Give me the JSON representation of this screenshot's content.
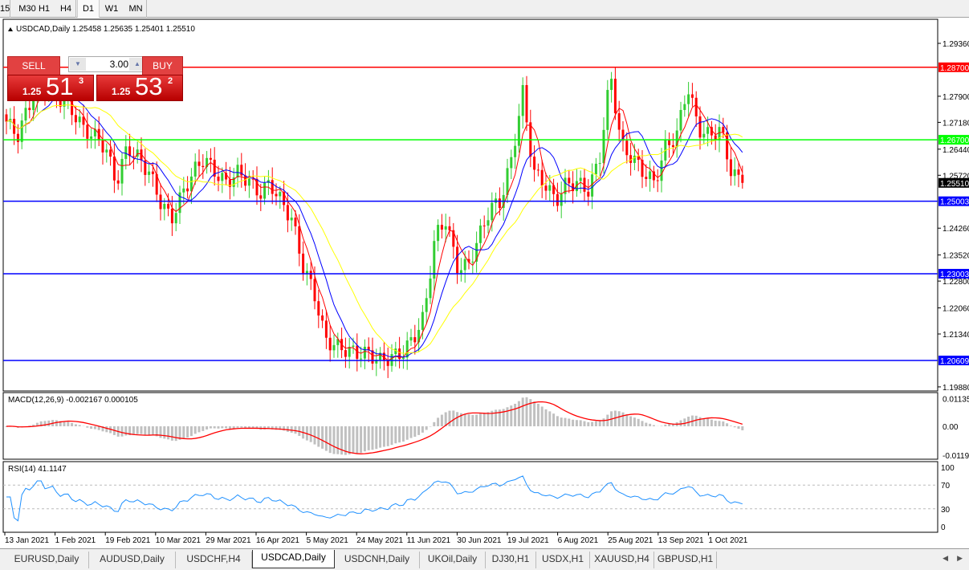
{
  "toolbar": {
    "timeframes": [
      {
        "label": "15"
      },
      {
        "label": "M30"
      },
      {
        "label": "H1"
      },
      {
        "label": "H4"
      },
      {
        "label": "D1",
        "active": true
      },
      {
        "label": "W1"
      },
      {
        "label": "MN"
      }
    ]
  },
  "chart": {
    "header": "USDCAD,Daily  1.25458 1.25635 1.25401 1.25510",
    "trade_panel": {
      "sell_label": "SELL",
      "buy_label": "BUY",
      "lot": "3.00",
      "sell_prefix": "1.25",
      "sell_big": "51",
      "sell_sup": "3",
      "buy_prefix": "1.25",
      "buy_big": "53",
      "buy_sup": "2"
    },
    "price_axis": [
      "1.29360",
      "1.27900",
      "1.27180",
      "1.26440",
      "1.25720",
      "1.24260",
      "1.23520",
      "1.22800",
      "1.22060",
      "1.21340",
      "1.19880"
    ],
    "current_price": {
      "label": "1.25510",
      "value": 1.2551,
      "color": "#000000"
    },
    "levels": [
      {
        "label": "1.28700",
        "value": 1.287,
        "color": "#ff0000"
      },
      {
        "label": "1.26700",
        "value": 1.267,
        "color": "#00ff00"
      },
      {
        "label": "1.25003",
        "value": 1.25003,
        "color": "#0000ff"
      },
      {
        "label": "1.23003",
        "value": 1.23003,
        "color": "#0000ff"
      },
      {
        "label": "1.20609",
        "value": 1.20609,
        "color": "#0000ff"
      }
    ],
    "date_labels": [
      "13 Jan 2021",
      "1 Feb 2021",
      "19 Feb 2021",
      "10 Mar 2021",
      "29 Mar 2021",
      "16 Apr 2021",
      "5 May 2021",
      "24 May 2021",
      "11 Jun 2021",
      "30 Jun 2021",
      "19 Jul 2021",
      "6 Aug 2021",
      "25 Aug 2021",
      "13 Sep 2021",
      "1 Oct 2021"
    ],
    "colors": {
      "bull": "#32cd32",
      "bear": "#ff0000",
      "ma_fast": "#ff0000",
      "ma_mid": "#0000ff",
      "ma_slow": "#ffff00"
    }
  },
  "macd": {
    "label": "MACD(12,26,9) -0.002167 0.000105",
    "axis": [
      "0.01135",
      "0.00",
      "-0.01190"
    ]
  },
  "rsi": {
    "label": "RSI(14) 41.1147",
    "axis": [
      "100",
      "70",
      "30",
      "0"
    ]
  },
  "chart_data": {
    "type": "candlestick",
    "symbol": "USDCAD",
    "timeframe": "Daily",
    "ylim": [
      1.1988,
      1.2985
    ],
    "closes": [
      1.272,
      1.268,
      1.276,
      1.283,
      1.281,
      1.278,
      1.275,
      1.27,
      1.268,
      1.265,
      1.255,
      1.265,
      1.262,
      1.258,
      1.25,
      1.245,
      1.252,
      1.258,
      1.262,
      1.258,
      1.255,
      1.258,
      1.256,
      1.252,
      1.255,
      1.25,
      1.245,
      1.232,
      1.225,
      1.212,
      1.21,
      1.209,
      1.208,
      1.208,
      1.206,
      1.207,
      1.208,
      1.212,
      1.218,
      1.24,
      1.245,
      1.232,
      1.232,
      1.24,
      1.248,
      1.25,
      1.262,
      1.28,
      1.258,
      1.255,
      1.25,
      1.255,
      1.255,
      1.253,
      1.262,
      1.285,
      1.265,
      1.262,
      1.258,
      1.255,
      1.265,
      1.268,
      1.282,
      1.27,
      1.268,
      1.27,
      1.258,
      1.2551
    ]
  },
  "tabs": [
    {
      "label": "EURUSD,Daily"
    },
    {
      "label": "AUDUSD,Daily"
    },
    {
      "label": "USDCHF,H4"
    },
    {
      "label": "USDCAD,Daily",
      "active": true
    },
    {
      "label": "USDCNH,Daily"
    },
    {
      "label": "UKOil,Daily"
    },
    {
      "label": "DJ30,H1"
    },
    {
      "label": "USDX,H1"
    },
    {
      "label": "XAUUSD,H4"
    },
    {
      "label": "GBPUSD,H1"
    }
  ]
}
